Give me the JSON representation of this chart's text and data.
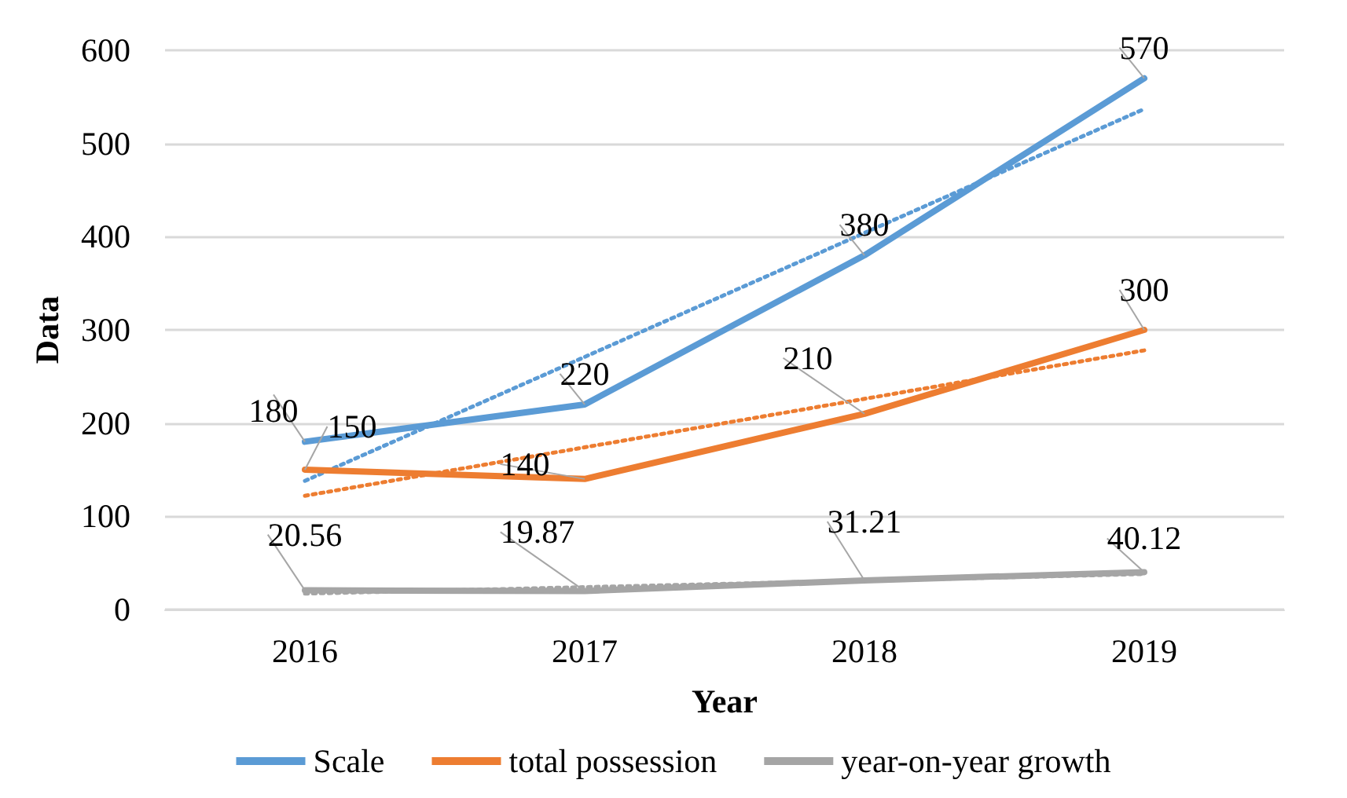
{
  "chart_data": {
    "type": "line",
    "xlabel": "Year",
    "ylabel": "Data",
    "categories": [
      "2016",
      "2017",
      "2018",
      "2019"
    ],
    "series": [
      {
        "name": "Scale",
        "color": "#5b9bd5",
        "values": [
          180,
          220,
          380,
          570
        ],
        "value_labels": [
          "180",
          "220",
          "380",
          "570"
        ]
      },
      {
        "name": "total possession",
        "color": "#ed7d31",
        "values": [
          150,
          140,
          210,
          300
        ],
        "value_labels": [
          "150",
          "140",
          "210",
          "300"
        ]
      },
      {
        "name": "year-on-year growth",
        "color": "#a5a5a5",
        "values": [
          20.56,
          19.87,
          31.21,
          40.12
        ],
        "value_labels": [
          "20.56",
          "19.87",
          "31.21",
          "40.12"
        ]
      },
      {
        "type": "line",
        "color": "#5b9bd5",
        "line_style": "dotted",
        "values": [
          138,
          271,
          404,
          537
        ]
      },
      {
        "type": "line",
        "color": "#ed7d31",
        "line_style": "dotted",
        "values": [
          122,
          174,
          226,
          278
        ]
      },
      {
        "type": "line",
        "color": "#a5a5a5",
        "line_style": "dotted",
        "values": [
          17,
          24,
          31,
          38
        ]
      }
    ],
    "ylim": [
      0,
      600
    ],
    "yticks": [
      0,
      100,
      200,
      300,
      400,
      500,
      600
    ],
    "grid": "y",
    "legend": "bottom",
    "marker": "none"
  }
}
